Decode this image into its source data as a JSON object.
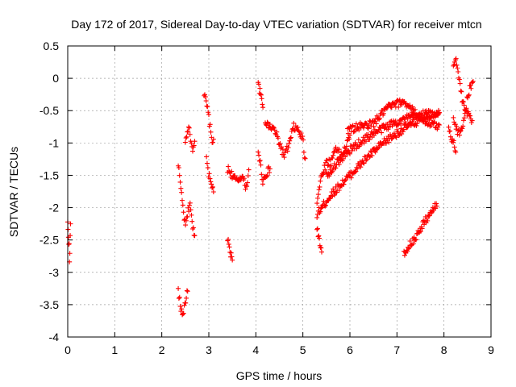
{
  "chart_data": {
    "type": "scatter",
    "title": "Day 172 of 2017, Sidereal Day-to-day VTEC variation (SDTVAR) for receiver mtcn",
    "xlabel": "GPS time / hours",
    "ylabel": "SDTVAR / TECUs",
    "xlim": [
      0,
      9
    ],
    "ylim": [
      -4,
      0.5
    ],
    "x_ticks": [
      0,
      1,
      2,
      3,
      4,
      5,
      6,
      7,
      8,
      9
    ],
    "x_tick_labels": [
      "0",
      "1",
      "2",
      "3",
      "4",
      "5",
      "6",
      "7",
      "8",
      "9"
    ],
    "y_ticks": [
      -4,
      -3.5,
      -3,
      -2.5,
      -2,
      -1.5,
      -1,
      -0.5,
      0,
      0.5
    ],
    "y_tick_labels": [
      "-4",
      "-3.5",
      "-3",
      "-2.5",
      "-2",
      "-1.5",
      "-1",
      "-0.5",
      "0",
      "0.5"
    ],
    "grid": true,
    "marker": "+",
    "color": "#ff0000",
    "series": [
      {
        "name": "SDTVAR",
        "segments": [
          {
            "x0": 0.0,
            "x1": 0.06,
            "points": [
              [
                0.0,
                -2.25
              ],
              [
                0.03,
                -2.6
              ],
              [
                0.04,
                -2.9
              ],
              [
                0.06,
                -2.2
              ]
            ]
          },
          {
            "x0": 2.35,
            "x1": 2.55,
            "points": [
              [
                2.35,
                -3.3
              ],
              [
                2.4,
                -3.55
              ],
              [
                2.45,
                -3.65
              ],
              [
                2.5,
                -3.45
              ],
              [
                2.55,
                -3.3
              ]
            ]
          },
          {
            "x0": 2.35,
            "x1": 2.7,
            "points": [
              [
                2.35,
                -1.3
              ],
              [
                2.4,
                -1.7
              ],
              [
                2.45,
                -2.0
              ],
              [
                2.5,
                -2.3
              ],
              [
                2.55,
                -2.1
              ],
              [
                2.6,
                -1.9
              ],
              [
                2.65,
                -2.3
              ],
              [
                2.7,
                -2.4
              ]
            ]
          },
          {
            "x0": 2.5,
            "x1": 2.7,
            "points": [
              [
                2.5,
                -1.0
              ],
              [
                2.55,
                -0.75
              ],
              [
                2.6,
                -0.85
              ],
              [
                2.65,
                -1.1
              ],
              [
                2.7,
                -0.95
              ]
            ]
          },
          {
            "x0": 2.9,
            "x1": 3.1,
            "points": [
              [
                2.9,
                -0.25
              ],
              [
                2.95,
                -0.4
              ],
              [
                3.0,
                -0.6
              ],
              [
                3.05,
                -0.9
              ],
              [
                3.1,
                -1.0
              ]
            ]
          },
          {
            "x0": 2.95,
            "x1": 3.1,
            "points": [
              [
                2.95,
                -1.2
              ],
              [
                3.0,
                -1.5
              ],
              [
                3.05,
                -1.65
              ],
              [
                3.1,
                -1.72
              ]
            ]
          },
          {
            "x0": 3.4,
            "x1": 3.5,
            "points": [
              [
                3.4,
                -2.5
              ],
              [
                3.45,
                -2.7
              ],
              [
                3.5,
                -2.8
              ]
            ]
          },
          {
            "x0": 3.4,
            "x1": 3.85,
            "points": [
              [
                3.4,
                -1.4
              ],
              [
                3.5,
                -1.5
              ],
              [
                3.6,
                -1.6
              ],
              [
                3.7,
                -1.5
              ],
              [
                3.8,
                -1.7
              ],
              [
                3.85,
                -1.4
              ]
            ]
          },
          {
            "x0": 4.05,
            "x1": 4.15,
            "points": [
              [
                4.05,
                -0.1
              ],
              [
                4.1,
                -0.25
              ],
              [
                4.15,
                -0.45
              ]
            ]
          },
          {
            "x0": 4.05,
            "x1": 4.3,
            "points": [
              [
                4.05,
                -1.1
              ],
              [
                4.1,
                -1.35
              ],
              [
                4.15,
                -1.6
              ],
              [
                4.2,
                -1.5
              ],
              [
                4.3,
                -1.4
              ]
            ]
          },
          {
            "x0": 4.2,
            "x1": 5.05,
            "points": [
              [
                4.2,
                -0.7
              ],
              [
                4.4,
                -0.8
              ],
              [
                4.5,
                -1.0
              ],
              [
                4.6,
                -1.2
              ],
              [
                4.7,
                -1.05
              ],
              [
                4.8,
                -0.75
              ],
              [
                4.9,
                -0.8
              ],
              [
                5.0,
                -0.95
              ],
              [
                5.05,
                -1.3
              ]
            ]
          },
          {
            "x0": 5.3,
            "x1": 5.4,
            "points": [
              [
                5.3,
                -2.3
              ],
              [
                5.35,
                -2.5
              ],
              [
                5.4,
                -2.65
              ]
            ]
          },
          {
            "x0": 5.3,
            "x1": 6.0,
            "points": [
              [
                5.3,
                -1.9
              ],
              [
                5.4,
                -1.5
              ],
              [
                5.5,
                -1.3
              ],
              [
                5.6,
                -1.3
              ],
              [
                5.7,
                -1.05
              ],
              [
                5.8,
                -1.2
              ],
              [
                5.9,
                -1.1
              ],
              [
                6.0,
                -0.9
              ]
            ]
          },
          {
            "x0": 5.3,
            "x1": 7.9,
            "points": [
              [
                5.3,
                -2.1
              ],
              [
                5.6,
                -1.8
              ],
              [
                6.0,
                -1.5
              ],
              [
                6.4,
                -1.2
              ],
              [
                6.8,
                -0.95
              ],
              [
                7.2,
                -0.75
              ],
              [
                7.5,
                -0.65
              ],
              [
                7.9,
                -0.5
              ]
            ]
          },
          {
            "x0": 5.5,
            "x1": 7.9,
            "points": [
              [
                5.5,
                -1.5
              ],
              [
                5.8,
                -1.25
              ],
              [
                6.1,
                -1.05
              ],
              [
                6.5,
                -0.85
              ],
              [
                6.9,
                -0.7
              ],
              [
                7.3,
                -0.6
              ],
              [
                7.6,
                -0.55
              ],
              [
                7.9,
                -0.55
              ]
            ]
          },
          {
            "x0": 5.95,
            "x1": 7.9,
            "points": [
              [
                5.95,
                -0.8
              ],
              [
                6.2,
                -0.75
              ],
              [
                6.5,
                -0.7
              ],
              [
                6.8,
                -0.45
              ],
              [
                7.0,
                -0.4
              ],
              [
                7.15,
                -0.35
              ],
              [
                7.4,
                -0.55
              ],
              [
                7.7,
                -0.7
              ],
              [
                7.9,
                -0.75
              ]
            ]
          },
          {
            "x0": 7.15,
            "x1": 7.85,
            "points": [
              [
                7.15,
                -2.7
              ],
              [
                7.3,
                -2.55
              ],
              [
                7.45,
                -2.4
              ],
              [
                7.6,
                -2.2
              ],
              [
                7.75,
                -2.05
              ],
              [
                7.85,
                -1.95
              ]
            ]
          },
          {
            "x0": 8.1,
            "x1": 8.25,
            "points": [
              [
                8.1,
                -0.75
              ],
              [
                8.15,
                -0.9
              ],
              [
                8.2,
                -1.0
              ],
              [
                8.25,
                -1.1
              ]
            ]
          },
          {
            "x0": 8.2,
            "x1": 8.6,
            "points": [
              [
                8.2,
                0.2
              ],
              [
                8.25,
                0.3
              ],
              [
                8.3,
                0.1
              ],
              [
                8.35,
                -0.15
              ],
              [
                8.4,
                -0.4
              ],
              [
                8.5,
                -0.55
              ],
              [
                8.6,
                -0.65
              ]
            ]
          },
          {
            "x0": 8.2,
            "x1": 8.62,
            "points": [
              [
                8.2,
                -0.6
              ],
              [
                8.3,
                -0.85
              ],
              [
                8.4,
                -0.75
              ],
              [
                8.5,
                -0.3
              ],
              [
                8.55,
                -0.15
              ],
              [
                8.62,
                -0.05
              ]
            ]
          }
        ]
      }
    ]
  }
}
